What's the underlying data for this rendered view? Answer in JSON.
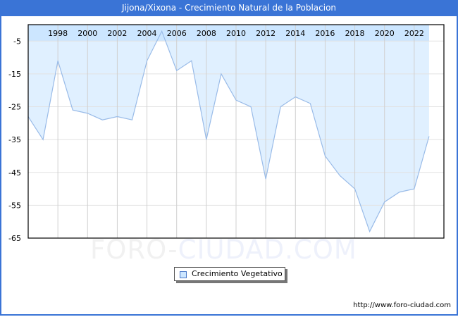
{
  "header": {
    "title": "Jijona/Xixona - Crecimiento Natural de la Poblacion"
  },
  "watermark": {
    "part1": "FORO-",
    "part2": "CIUDAD.COM"
  },
  "legend": {
    "label": "Crecimiento Vegetativo"
  },
  "footer": {
    "credit": "http://www.foro-ciudad.com"
  },
  "colors": {
    "frame": "#3a74d6",
    "fill": "#e0f0ff",
    "band": "#cce6ff",
    "line": "#99bbe8",
    "grid": "#d0d0d0"
  },
  "chart_data": {
    "type": "area",
    "title": "Jijona/Xixona - Crecimiento Natural de la Poblacion",
    "xlabel": "",
    "ylabel": "",
    "ylim": [
      -65,
      0
    ],
    "xlim": [
      1996,
      2024
    ],
    "grid": true,
    "legend_position": "bottom",
    "x_tick_labels": [
      "1998",
      "2000",
      "2002",
      "2004",
      "2006",
      "2008",
      "2010",
      "2012",
      "2014",
      "2016",
      "2018",
      "2020",
      "2022"
    ],
    "y_tick_labels": [
      "-5",
      "-15",
      "-25",
      "-35",
      "-45",
      "-55",
      "-65"
    ],
    "x": [
      1996,
      1997,
      1998,
      1999,
      2000,
      2001,
      2002,
      2003,
      2004,
      2005,
      2006,
      2007,
      2008,
      2009,
      2010,
      2011,
      2012,
      2013,
      2014,
      2015,
      2016,
      2017,
      2018,
      2019,
      2020,
      2021,
      2022,
      2023
    ],
    "series": [
      {
        "name": "Crecimiento Vegetativo",
        "values": [
          -28,
          -35,
          -11,
          -26,
          -27,
          -29,
          -28,
          -29,
          -11,
          -2,
          -14,
          -11,
          -35,
          -15,
          -23,
          -25,
          -47,
          -25,
          -22,
          -24,
          -40,
          -46,
          -50,
          -63,
          -54,
          -51,
          -50,
          -34
        ]
      }
    ]
  }
}
